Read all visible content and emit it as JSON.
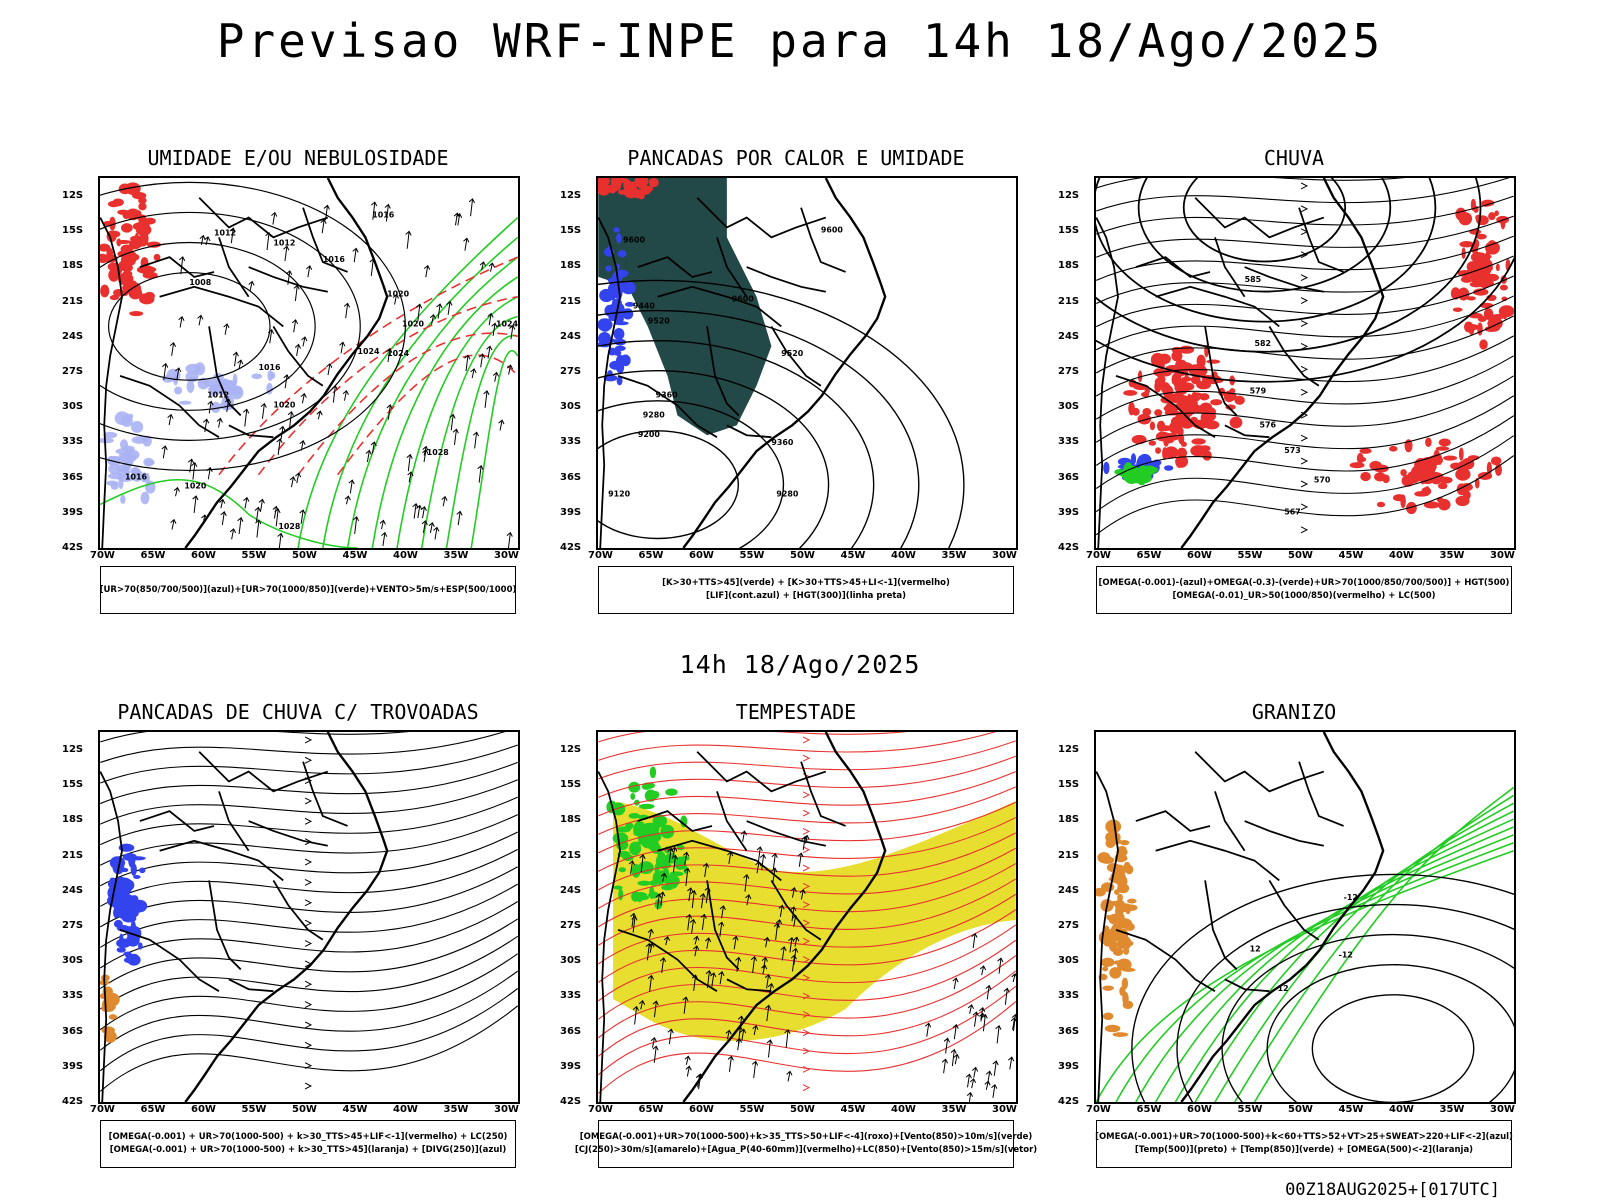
{
  "header": {
    "title": "Previsao WRF-INPE  para 14h 18/Ago/2025"
  },
  "middle_title": "14h 18/Ago/2025",
  "footer": {
    "run_code": "00Z18AUG2025+[017UTC]"
  },
  "axes": {
    "lat_labels": [
      "12S",
      "15S",
      "18S",
      "21S",
      "24S",
      "27S",
      "30S",
      "33S",
      "36S",
      "39S",
      "42S"
    ],
    "lon_labels": [
      "70W",
      "65W",
      "60W",
      "55W",
      "50W",
      "45W",
      "40W",
      "35W",
      "30W"
    ]
  },
  "colors": {
    "black": "#000000",
    "red": "#e8312f",
    "green": "#22cc22",
    "blue": "#3344ee",
    "lightblue": "#aab2f4",
    "darkteal": "#224848",
    "yellow": "#e8de30",
    "orange": "#e08a30",
    "purple": "#8844aa"
  },
  "panels": [
    {
      "title": "UMIDADE E/OU NEBULOSIDADE",
      "legend": [
        "[UR>70(850/700/500)](azul)+[UR>70(1000/850)](verde)+VENTO>5m/s+ESP(500/1000)"
      ],
      "contour_labels": [
        "1012",
        "1012",
        "1016",
        "1016",
        "1008",
        "1020",
        "1020",
        "1024",
        "1016",
        "1012",
        "1020",
        "1024",
        "1028",
        "1016",
        "1020",
        "1028",
        "1024"
      ]
    },
    {
      "title": "PANCADAS POR CALOR E UMIDADE",
      "legend": [
        "[K>30+TTS>45](verde) + [K>30+TTS>45+LI<-1](vermelho)",
        "[LIF](cont.azul) + [HGT(300)](linha preta)"
      ],
      "contour_labels": [
        "9600",
        "9600",
        "9600",
        "9440",
        "9520",
        "9520",
        "9360",
        "9280",
        "9200",
        "9120",
        "9360",
        "9280"
      ]
    },
    {
      "title": "CHUVA",
      "legend": [
        "[OMEGA(-0.001)-(azul)+OMEGA(-0.3)-(verde)+UR>70(1000/850/700/500)] + HGT(500)",
        "[OMEGA(-0.01)_UR>50(1000/850)(vermelho) + LC(500)"
      ],
      "contour_labels": [
        "585",
        "582",
        "579",
        "576",
        "573",
        "570",
        "567"
      ]
    },
    {
      "title": "PANCADAS DE CHUVA C/ TROVOADAS",
      "legend": [
        "[OMEGA(-0.001) + UR>70(1000-500) + k>30_TTS>45+LIF<-1](vermelho) + LC(250)",
        "[OMEGA(-0.001) + UR>70(1000-500) + k>30_TTS>45](laranja) + [DIVG(250)](azul)"
      ],
      "contour_labels": []
    },
    {
      "title": "TEMPESTADE",
      "legend": [
        "[OMEGA(-0.001)+UR>70(1000-500)+k>35_TTS>50+LIF<-4](roxo)+[Vento(850)>10m/s](verde)",
        "[CJ(250)>30m/s](amarelo)+[Agua_P(40-60mm)](vermelho)+LC(850)+[Vento(850)>15m/s](vetor)"
      ],
      "contour_labels": []
    },
    {
      "title": "GRANIZO",
      "legend": [
        "[OMEGA(-0.001)+UR>70(1000-500)+k<60+TTS>52+VT>25+SWEAT>220+LIF<-2](azul)",
        "[Temp(500)](preto) + [Temp(850)](verde) + [OMEGA(500)<-2](laranja)"
      ],
      "contour_labels": [
        "-12",
        "12",
        "-12",
        "-12"
      ]
    }
  ]
}
